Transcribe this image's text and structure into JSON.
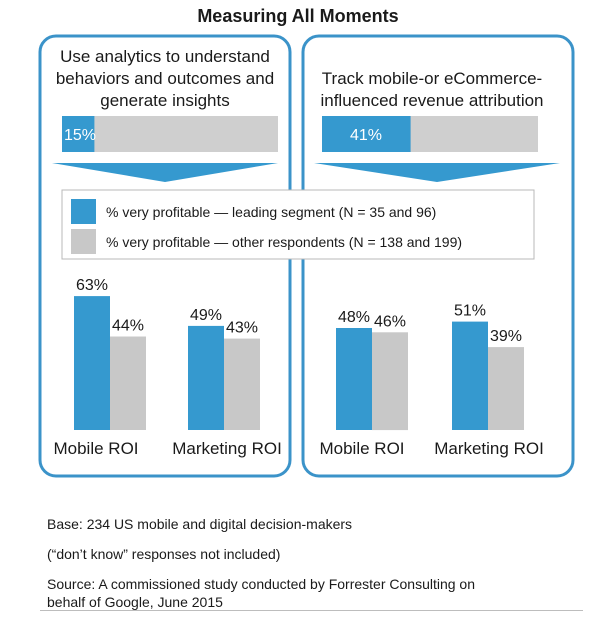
{
  "title": "Measuring All Moments",
  "colors": {
    "leading": "#3599cf",
    "other": "#c8c8c8",
    "border": "#3b93c9",
    "arrow": "#3599cf",
    "bar_track": "#cfcfcf"
  },
  "panels": [
    {
      "title_lines": [
        "Use analytics to understand",
        "behaviors and outcomes and",
        "generate insights"
      ],
      "share_label": "15%",
      "share_fraction": 0.15
    },
    {
      "title_lines": [
        "Track mobile-or eCommerce-",
        "influenced revenue attribution"
      ],
      "share_label": "41%",
      "share_fraction": 0.41
    }
  ],
  "legend": {
    "leading": "% very profitable — leading segment (N = 35 and 96)",
    "other": "% very profitable — other respondents (N = 138 and 199)"
  },
  "chart_data": [
    {
      "type": "bar",
      "categories": [
        "Mobile ROI",
        "Marketing ROI"
      ],
      "series": [
        {
          "name": "% very profitable — leading segment (N = 35 and 96)",
          "values": [
            63,
            49
          ],
          "labels": [
            "63%",
            "49%"
          ]
        },
        {
          "name": "% very profitable — other respondents (N = 138 and 199)",
          "values": [
            44,
            43
          ],
          "labels": [
            "44%",
            "43%"
          ]
        }
      ]
    },
    {
      "type": "bar",
      "categories": [
        "Mobile ROI",
        "Marketing ROI"
      ],
      "series": [
        {
          "name": "% very profitable — leading segment (N = 35 and 96)",
          "values": [
            48,
            51
          ],
          "labels": [
            "48%",
            "51%"
          ]
        },
        {
          "name": "% very profitable — other respondents (N = 138 and 199)",
          "values": [
            46,
            39
          ],
          "labels": [
            "46%",
            "39%"
          ]
        }
      ]
    }
  ],
  "footnotes": {
    "base": "Base: 234 US mobile and digital decision-makers",
    "dont_know": "(“don’t know” responses not included)",
    "source_line1": "Source: A commissioned study conducted by Forrester Consulting on",
    "source_line2": "behalf of Google, June 2015"
  }
}
